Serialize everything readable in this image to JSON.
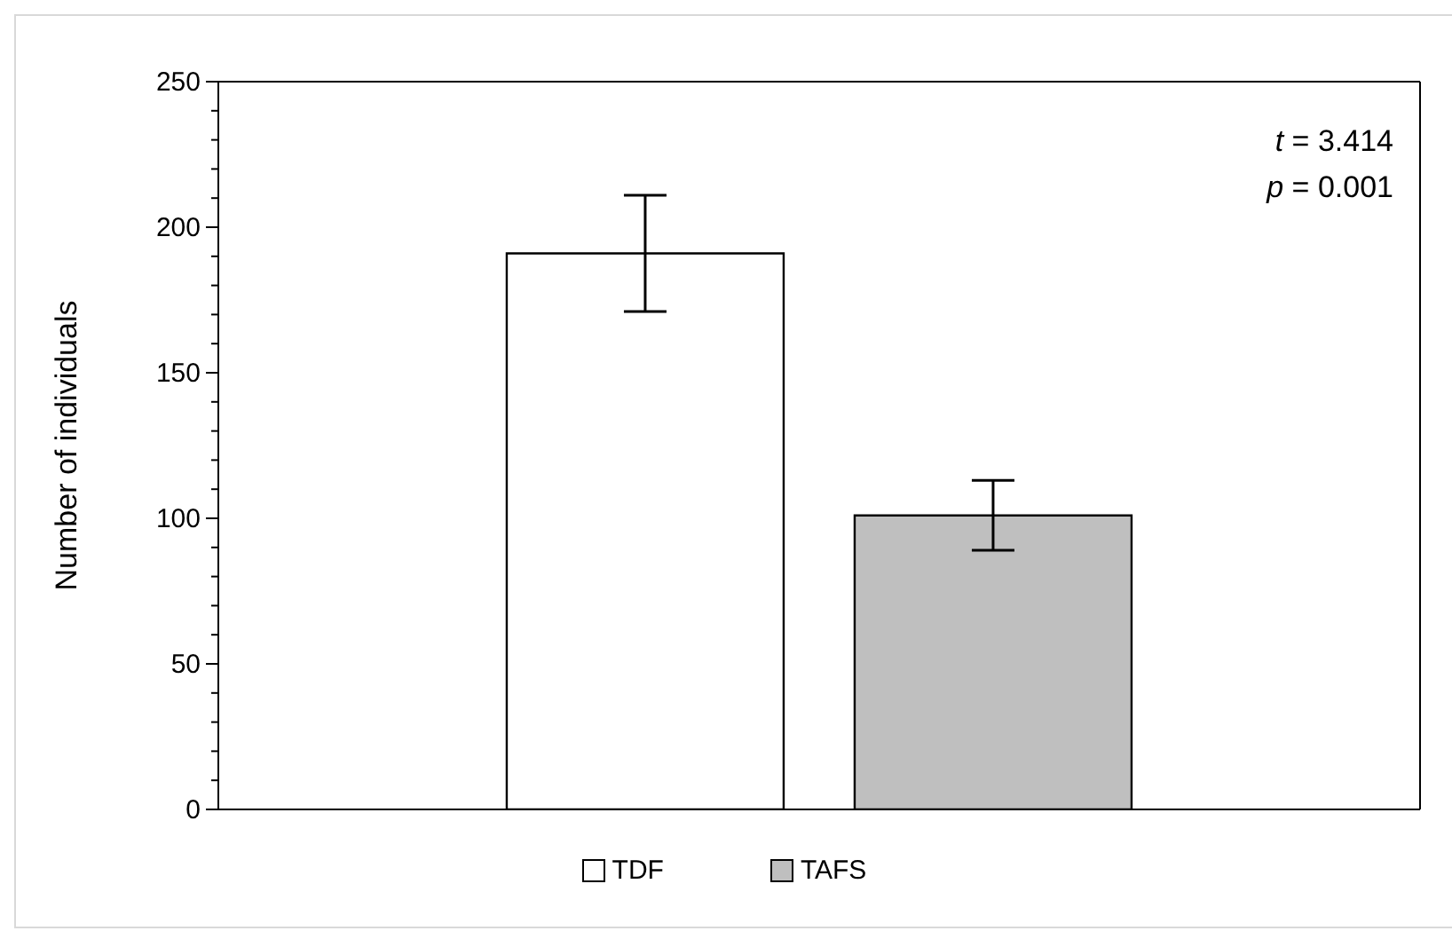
{
  "chart_data": {
    "type": "bar",
    "ylabel": "Number of individuals",
    "categories": [
      null
    ],
    "series": [
      {
        "name": "TDF",
        "color": "#ffffff",
        "values": [
          191
        ],
        "errors": [
          20
        ]
      },
      {
        "name": "TAFS",
        "color": "#bfbfbf",
        "values": [
          101
        ],
        "errors": [
          12
        ]
      }
    ],
    "ylim": [
      0,
      250
    ],
    "yticks": [
      0,
      {
        "value": 10,
        "label": null
      },
      {
        "value": 20,
        "label": null
      },
      {
        "value": 30,
        "label": null
      },
      {
        "value": 40,
        "label": null
      },
      50,
      {
        "value": 60,
        "label": null
      },
      {
        "value": 70,
        "label": null
      },
      {
        "value": 80,
        "label": null
      },
      {
        "value": 90,
        "label": null
      },
      100,
      {
        "value": 110,
        "label": null
      },
      {
        "value": 120,
        "label": null
      },
      {
        "value": 130,
        "label": null
      },
      {
        "value": 140,
        "label": null
      },
      150,
      {
        "value": 160,
        "label": null
      },
      {
        "value": 170,
        "label": null
      },
      {
        "value": 180,
        "label": null
      },
      {
        "value": 190,
        "label": null
      },
      200,
      {
        "value": 210,
        "label": null
      },
      {
        "value": 220,
        "label": null
      },
      {
        "value": 230,
        "label": null
      },
      {
        "value": 240,
        "label": null
      },
      250
    ],
    "annotations": [
      "t = 3.414",
      "p = 0.001"
    ],
    "legend": "bottom"
  }
}
